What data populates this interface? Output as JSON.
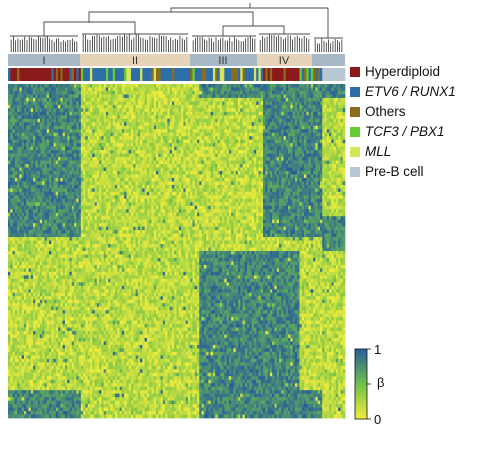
{
  "chart_data": {
    "type": "heatmap",
    "clusters": [
      "I",
      "II",
      "III",
      "IV"
    ],
    "legend": [
      {
        "label": "Hyperdiploid",
        "color": "#8b1a1a",
        "italic": false
      },
      {
        "label": "ETV6 / RUNX1",
        "color": "#2e6ea8",
        "italic": true
      },
      {
        "label": "Others",
        "color": "#8a6d1c",
        "italic": false
      },
      {
        "label": "TCF3 / PBX1",
        "color": "#66cc33",
        "italic": true
      },
      {
        "label": "MLL",
        "color": "#d6e65a",
        "italic": true
      },
      {
        "label": "Pre-B cell",
        "color": "#b9c7d4",
        "italic": false
      }
    ],
    "colorbar": {
      "max_label": "1",
      "min_label": "0",
      "title": "β",
      "range": [
        0,
        1
      ]
    },
    "colors": {
      "low": "#f0ec3e",
      "mid": "#6cc04a",
      "high": "#2a5f9a",
      "cluster_band_a": "#a9b8c6",
      "cluster_band_b": "#e6d3b8"
    }
  }
}
